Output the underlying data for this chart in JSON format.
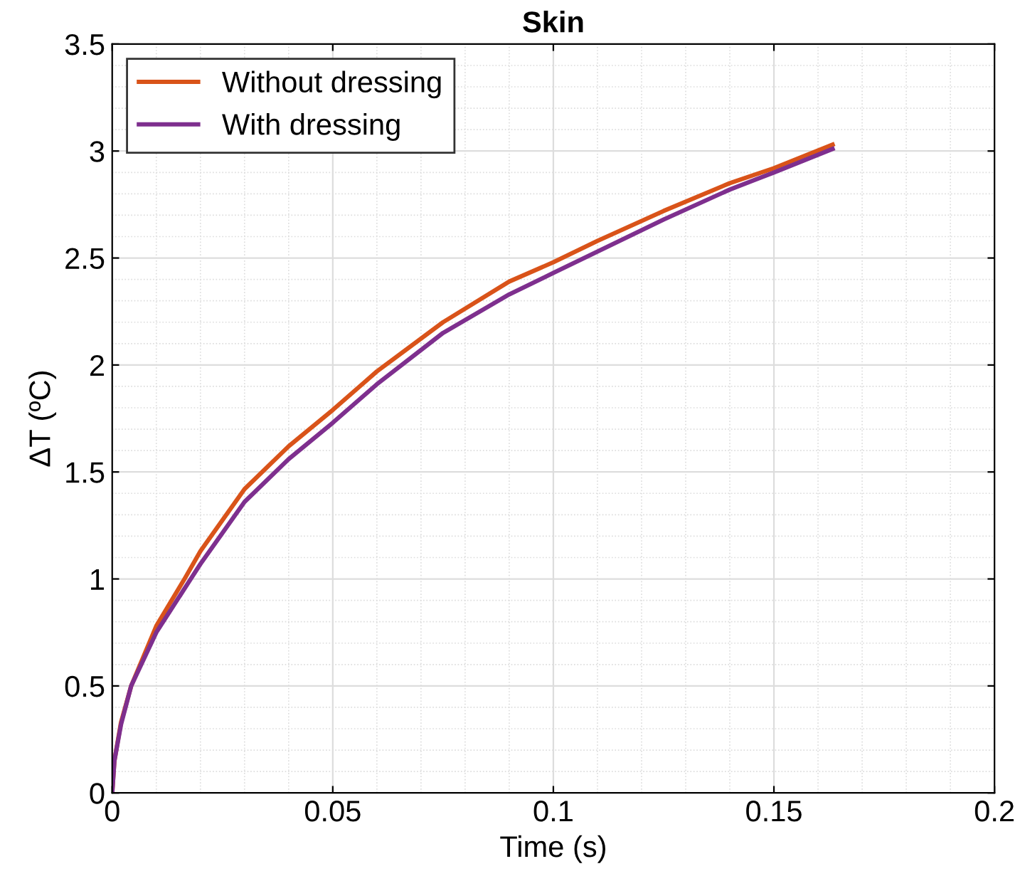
{
  "chart_data": {
    "type": "line",
    "title": "Skin",
    "xlabel": "Time (s)",
    "ylabel": "ΔT (ºC)",
    "xlim": [
      0,
      0.2
    ],
    "xticks": [
      0,
      0.05,
      0.1,
      0.15,
      0.2
    ],
    "ylim": [
      0,
      3.5
    ],
    "yticks": [
      0,
      0.5,
      1,
      1.5,
      2,
      2.5,
      3,
      3.5
    ],
    "grid": true,
    "legend": "top left",
    "line_style": "solid",
    "marker": "none",
    "series": [
      {
        "name": "Without dressing",
        "color": "#d95319",
        "x": [
          0,
          0.0005,
          0.002,
          0.0043,
          0.01,
          0.0164,
          0.02,
          0.03,
          0.04,
          0.05,
          0.06,
          0.075,
          0.09,
          0.1,
          0.11,
          0.125,
          0.14,
          0.15,
          0.1633
        ],
        "values": [
          0,
          0.15,
          0.33,
          0.5,
          0.78,
          1.0,
          1.13,
          1.42,
          1.62,
          1.79,
          1.97,
          2.2,
          2.39,
          2.48,
          2.58,
          2.72,
          2.85,
          2.92,
          3.03
        ]
      },
      {
        "name": "With dressing",
        "color": "#7e2f8e",
        "x": [
          0,
          0.0005,
          0.002,
          0.0043,
          0.01,
          0.0178,
          0.02,
          0.03,
          0.04,
          0.05,
          0.06,
          0.075,
          0.09,
          0.1,
          0.11,
          0.125,
          0.14,
          0.15,
          0.1633
        ],
        "values": [
          0,
          0.15,
          0.32,
          0.5,
          0.75,
          1.0,
          1.07,
          1.36,
          1.56,
          1.73,
          1.91,
          2.15,
          2.33,
          2.43,
          2.53,
          2.68,
          2.82,
          2.9,
          3.01
        ]
      }
    ]
  }
}
